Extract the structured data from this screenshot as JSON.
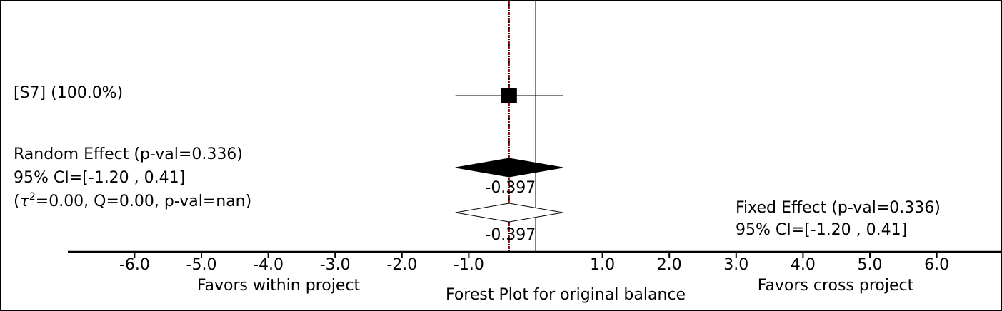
{
  "chart_data": {
    "type": "forest",
    "title": "Forest Plot for original balance",
    "xlim": [
      -7.0,
      7.0
    ],
    "x_ticks": [
      -6.0,
      -5.0,
      -4.0,
      -3.0,
      -2.0,
      -1.0,
      1.0,
      2.0,
      3.0,
      4.0,
      5.0,
      6.0
    ],
    "x_tick_labels": [
      "-6.0",
      "-5.0",
      "-4.0",
      "-3.0",
      "-2.0",
      "-1.0",
      "1.0",
      "2.0",
      "3.0",
      "4.0",
      "5.0",
      "6.0"
    ],
    "favors_left": "Favors within project",
    "favors_right": "Favors cross project",
    "studies": [
      {
        "label": "[S7] (100.0%)",
        "effect": -0.397,
        "ci_low": -1.2,
        "ci_high": 0.41,
        "weight": 100.0
      }
    ],
    "random_effect": {
      "effect": -0.397,
      "ci_low": -1.2,
      "ci_high": 0.41,
      "effect_label": "-0.397",
      "label_lines": [
        "Random Effect (p-val=0.336)",
        "95% CI=[-1.20 , 0.41]"
      ],
      "het_label": {
        "prefix": "(",
        "tau": "τ",
        "sup": "2",
        "rest": "=0.00, Q=0.00, p-val=nan)"
      }
    },
    "fixed_effect": {
      "effect": -0.397,
      "ci_low": -1.2,
      "ci_high": 0.41,
      "effect_label": "-0.397",
      "label_lines": [
        "Fixed Effect (p-val=0.336)",
        "95% CI=[-1.20 , 0.41]"
      ]
    },
    "reference_line_x": 0.0,
    "colors": {
      "axis": "#000000",
      "study_marker": "#000000",
      "random_diamond": "#000000",
      "fixed_diamond": "#ffffff",
      "pooled_line": "#8b0000"
    }
  }
}
